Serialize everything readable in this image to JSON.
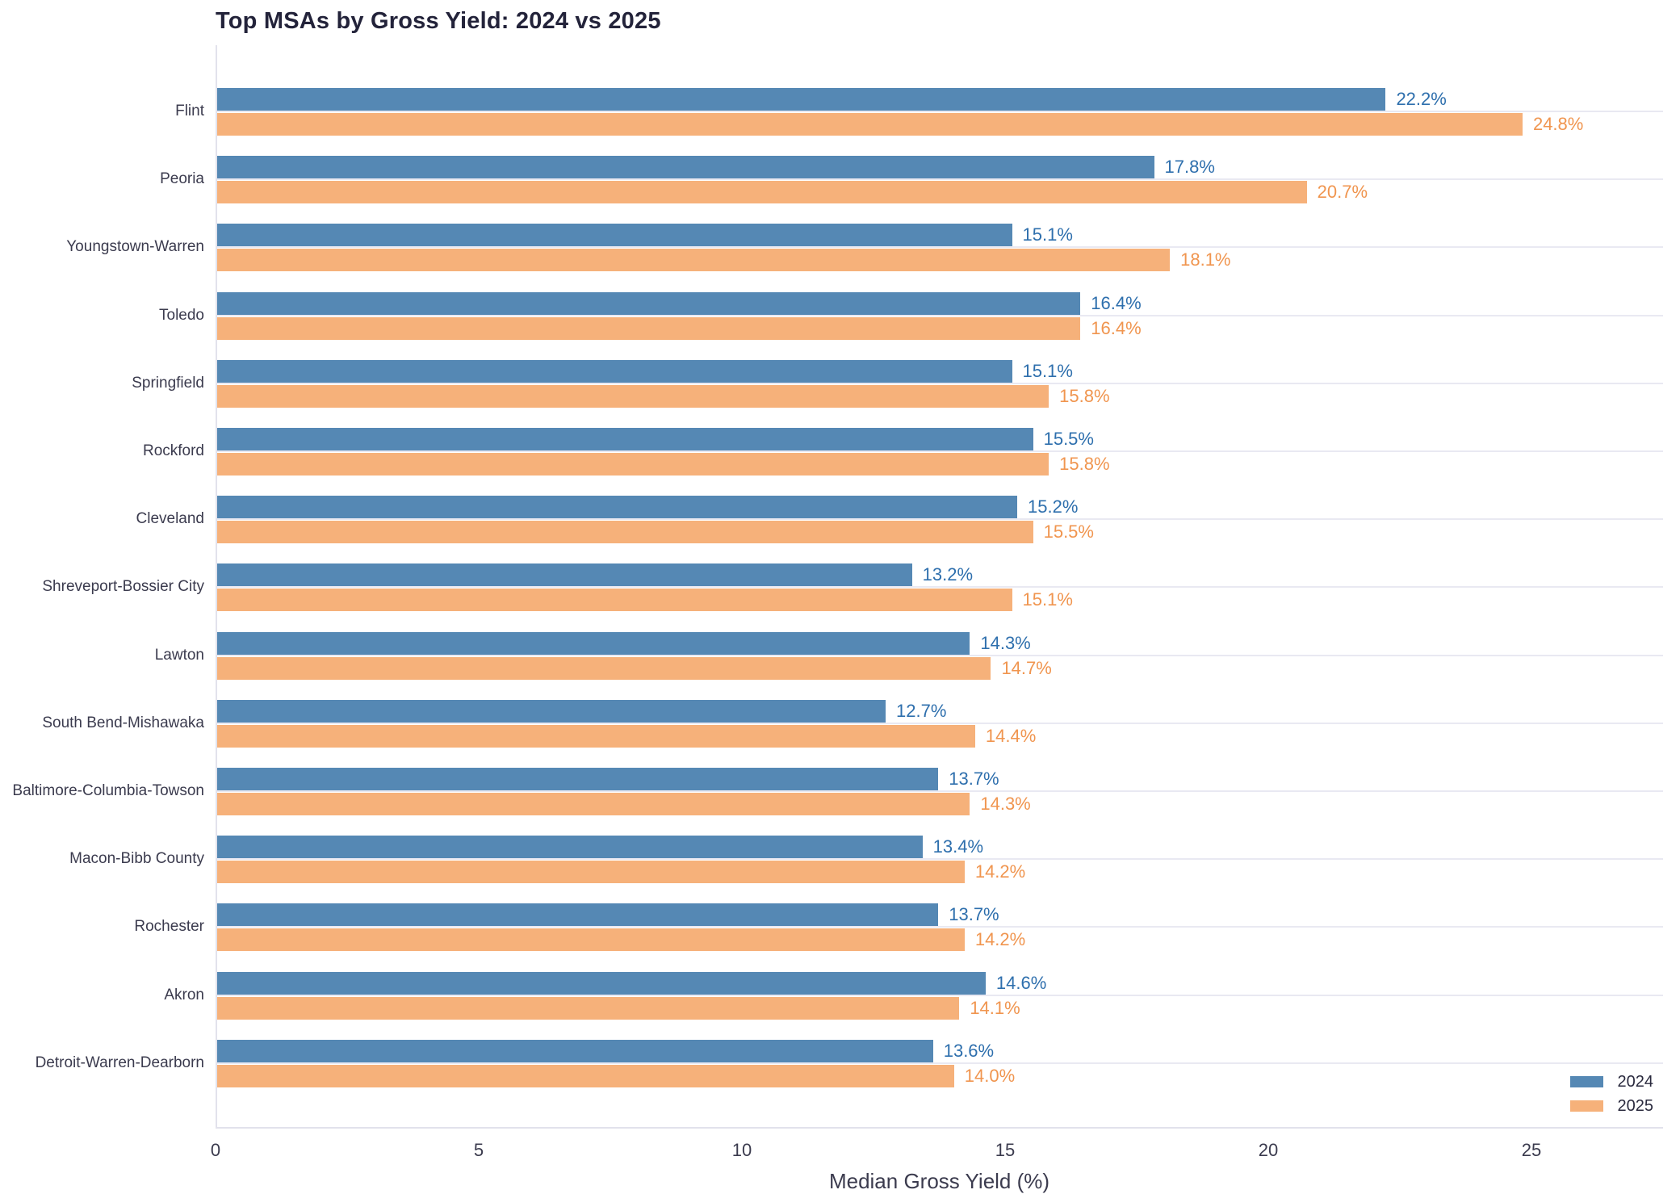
{
  "chart_data": {
    "type": "bar",
    "orientation": "horizontal",
    "title": "Top MSAs by Gross Yield: 2024 vs 2025",
    "xlabel": "Median Gross Yield (%)",
    "ylabel": "",
    "categories": [
      "Flint",
      "Peoria",
      "Youngstown-Warren",
      "Toledo",
      "Springfield",
      "Rockford",
      "Cleveland",
      "Shreveport-Bossier City",
      "Lawton",
      "South Bend-Mishawaka",
      "Baltimore-Columbia-Towson",
      "Macon-Bibb County",
      "Rochester",
      "Akron",
      "Detroit-Warren-Dearborn"
    ],
    "series": [
      {
        "name": "2024",
        "color": "#5588b4",
        "label_color": "#2e6fad",
        "values": [
          22.2,
          17.8,
          15.1,
          16.4,
          15.1,
          15.5,
          15.2,
          13.2,
          14.3,
          12.7,
          13.7,
          13.4,
          13.7,
          14.6,
          13.6
        ]
      },
      {
        "name": "2025",
        "color": "#f6b17a",
        "label_color": "#f0954f",
        "values": [
          24.8,
          20.7,
          18.1,
          16.4,
          15.8,
          15.8,
          15.5,
          15.1,
          14.7,
          14.4,
          14.3,
          14.2,
          14.2,
          14.1,
          14.0
        ]
      }
    ],
    "value_label_suffix": "%",
    "xticks": [
      0,
      5,
      10,
      15,
      20,
      25
    ],
    "xlim": [
      0,
      27.5
    ],
    "grid": "horizontal lines at category centers",
    "legend_position": "lower right",
    "background_color": "#ffffff",
    "gridline_color": "#e9e9f2",
    "text_color": "#3b3b4e",
    "title_color": "#23233a"
  }
}
